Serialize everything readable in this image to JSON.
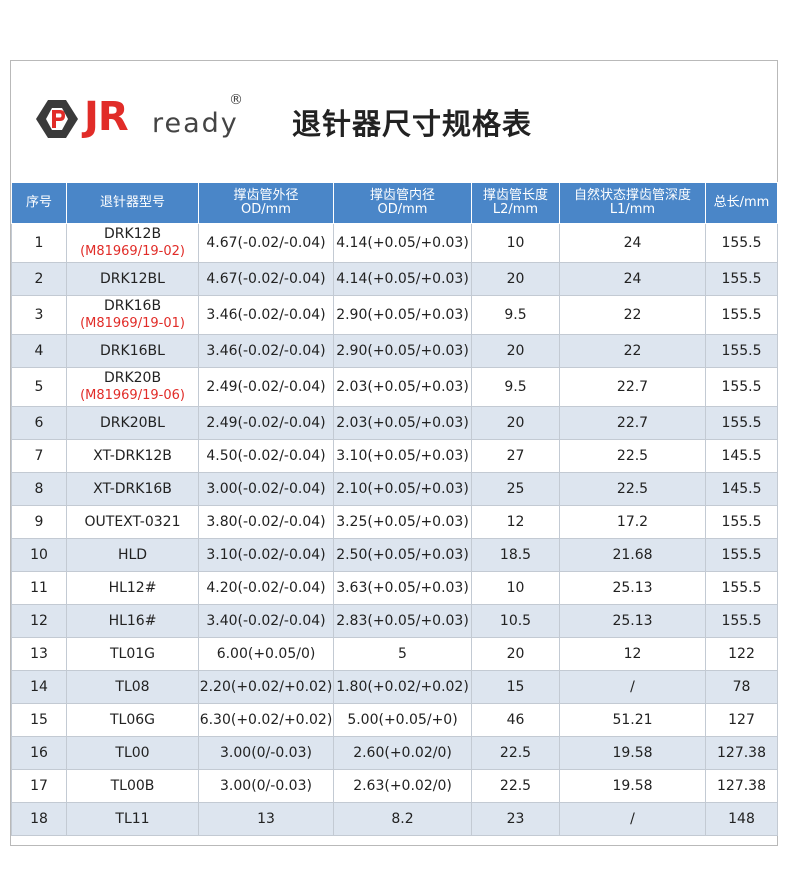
{
  "brand": {
    "mark": "JR",
    "word": "ready",
    "reg": "®"
  },
  "title": "退针器尺寸规格表",
  "headers": [
    {
      "l1": "序号",
      "l2": ""
    },
    {
      "l1": "退针器型号",
      "l2": ""
    },
    {
      "l1": "撑齿管外径",
      "l2": "OD/mm"
    },
    {
      "l1": "撑齿管内径",
      "l2": "OD/mm"
    },
    {
      "l1": "撑齿管长度",
      "l2": "L2/mm"
    },
    {
      "l1": "自然状态撑齿管深度",
      "l2": "L1/mm"
    },
    {
      "l1": "总长/mm",
      "l2": ""
    }
  ],
  "rows": [
    {
      "no": "1",
      "model": "DRK12B",
      "sub": "(M81969/19-02)",
      "od": "4.67(-0.02/-0.04)",
      "id": "4.14(+0.05/+0.03)",
      "l2": "10",
      "l1": "24",
      "total": "155.5"
    },
    {
      "no": "2",
      "model": "DRK12BL",
      "sub": "",
      "od": "4.67(-0.02/-0.04)",
      "id": "4.14(+0.05/+0.03)",
      "l2": "20",
      "l1": "24",
      "total": "155.5"
    },
    {
      "no": "3",
      "model": "DRK16B",
      "sub": "(M81969/19-01)",
      "od": "3.46(-0.02/-0.04)",
      "id": "2.90(+0.05/+0.03)",
      "l2": "9.5",
      "l1": "22",
      "total": "155.5"
    },
    {
      "no": "4",
      "model": "DRK16BL",
      "sub": "",
      "od": "3.46(-0.02/-0.04)",
      "id": "2.90(+0.05/+0.03)",
      "l2": "20",
      "l1": "22",
      "total": "155.5"
    },
    {
      "no": "5",
      "model": "DRK20B",
      "sub": "(M81969/19-06)",
      "od": "2.49(-0.02/-0.04)",
      "id": "2.03(+0.05/+0.03)",
      "l2": "9.5",
      "l1": "22.7",
      "total": "155.5"
    },
    {
      "no": "6",
      "model": "DRK20BL",
      "sub": "",
      "od": "2.49(-0.02/-0.04)",
      "id": "2.03(+0.05/+0.03)",
      "l2": "20",
      "l1": "22.7",
      "total": "155.5"
    },
    {
      "no": "7",
      "model": "XT-DRK12B",
      "sub": "",
      "od": "4.50(-0.02/-0.04)",
      "id": "3.10(+0.05/+0.03)",
      "l2": "27",
      "l1": "22.5",
      "total": "145.5"
    },
    {
      "no": "8",
      "model": "XT-DRK16B",
      "sub": "",
      "od": "3.00(-0.02/-0.04)",
      "id": "2.10(+0.05/+0.03)",
      "l2": "25",
      "l1": "22.5",
      "total": "145.5"
    },
    {
      "no": "9",
      "model": "OUTEXT-0321",
      "sub": "",
      "od": "3.80(-0.02/-0.04)",
      "id": "3.25(+0.05/+0.03)",
      "l2": "12",
      "l1": "17.2",
      "total": "155.5"
    },
    {
      "no": "10",
      "model": "HLD",
      "sub": "",
      "od": "3.10(-0.02/-0.04)",
      "id": "2.50(+0.05/+0.03)",
      "l2": "18.5",
      "l1": "21.68",
      "total": "155.5"
    },
    {
      "no": "11",
      "model": "HL12#",
      "sub": "",
      "od": "4.20(-0.02/-0.04)",
      "id": "3.63(+0.05/+0.03)",
      "l2": "10",
      "l1": "25.13",
      "total": "155.5"
    },
    {
      "no": "12",
      "model": "HL16#",
      "sub": "",
      "od": "3.40(-0.02/-0.04)",
      "id": "2.83(+0.05/+0.03)",
      "l2": "10.5",
      "l1": "25.13",
      "total": "155.5"
    },
    {
      "no": "13",
      "model": "TL01G",
      "sub": "",
      "od": "6.00(+0.05/0)",
      "id": "5",
      "l2": "20",
      "l1": "12",
      "total": "122"
    },
    {
      "no": "14",
      "model": "TL08",
      "sub": "",
      "od": "2.20(+0.02/+0.02)",
      "id": "1.80(+0.02/+0.02)",
      "l2": "15",
      "l1": "/",
      "total": "78"
    },
    {
      "no": "15",
      "model": "TL06G",
      "sub": "",
      "od": "6.30(+0.02/+0.02)",
      "id": "5.00(+0.05/+0)",
      "l2": "46",
      "l1": "51.21",
      "total": "127"
    },
    {
      "no": "16",
      "model": "TL00",
      "sub": "",
      "od": "3.00(0/-0.03)",
      "id": "2.60(+0.02/0)",
      "l2": "22.5",
      "l1": "19.58",
      "total": "127.38"
    },
    {
      "no": "17",
      "model": "TL00B",
      "sub": "",
      "od": "3.00(0/-0.03)",
      "id": "2.63(+0.02/0)",
      "l2": "22.5",
      "l1": "19.58",
      "total": "127.38"
    },
    {
      "no": "18",
      "model": "TL11",
      "sub": "",
      "od": "13",
      "id": "8.2",
      "l2": "23",
      "l1": "/",
      "total": "148"
    }
  ]
}
